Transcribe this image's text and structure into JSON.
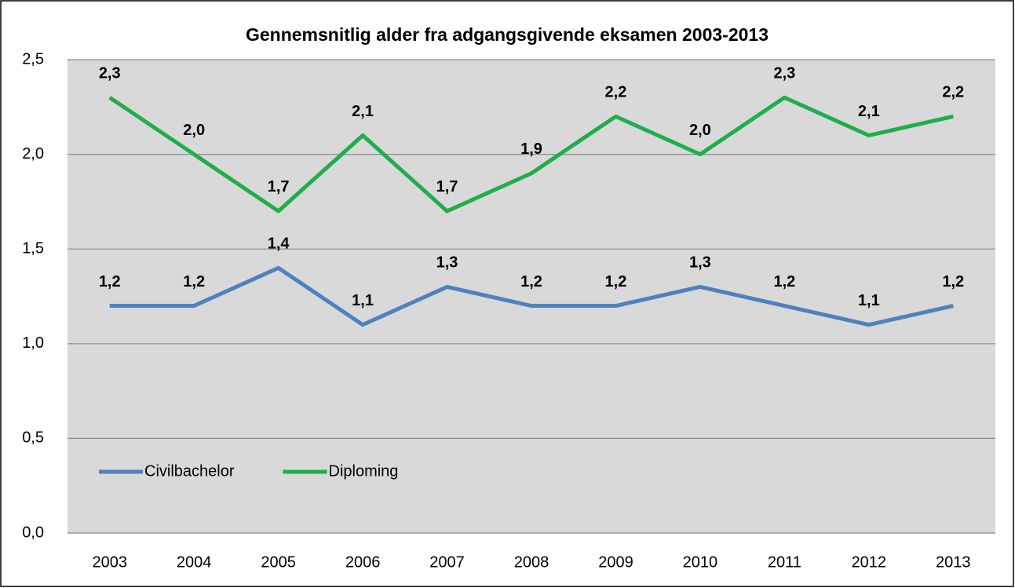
{
  "chart_data": {
    "type": "line",
    "title": "Gennemsnitlig alder fra adgangsgivende eksamen 2003-2013",
    "categories": [
      "2003",
      "2004",
      "2005",
      "2006",
      "2007",
      "2008",
      "2009",
      "2010",
      "2011",
      "2012",
      "2013"
    ],
    "series": [
      {
        "name": "Civilbachelor",
        "color": "#4f81bd",
        "values": [
          1.2,
          1.2,
          1.4,
          1.1,
          1.3,
          1.2,
          1.2,
          1.3,
          1.2,
          1.1,
          1.2
        ],
        "value_labels": [
          "1,2",
          "1,2",
          "1,4",
          "1,1",
          "1,3",
          "1,2",
          "1,2",
          "1,3",
          "1,2",
          "1,1",
          "1,2"
        ]
      },
      {
        "name": "Diploming",
        "color": "#1fae4b",
        "values": [
          2.3,
          2.0,
          1.7,
          2.1,
          1.7,
          1.9,
          2.2,
          2.0,
          2.3,
          2.1,
          2.2
        ],
        "value_labels": [
          "2,3",
          "2,0",
          "1,7",
          "2,1",
          "1,7",
          "1,9",
          "2,2",
          "2,0",
          "2,3",
          "2,1",
          "2,2"
        ]
      }
    ],
    "ylim": [
      0,
      2.5
    ],
    "yticks": [
      {
        "value": 0,
        "label": "0,0"
      },
      {
        "value": 0.5,
        "label": "0,5"
      },
      {
        "value": 1,
        "label": "1,0"
      },
      {
        "value": 1.5,
        "label": "1,5"
      },
      {
        "value": 2,
        "label": "2,0"
      },
      {
        "value": 2.5,
        "label": "2,5"
      }
    ],
    "grid": true,
    "legend": "lower left"
  }
}
